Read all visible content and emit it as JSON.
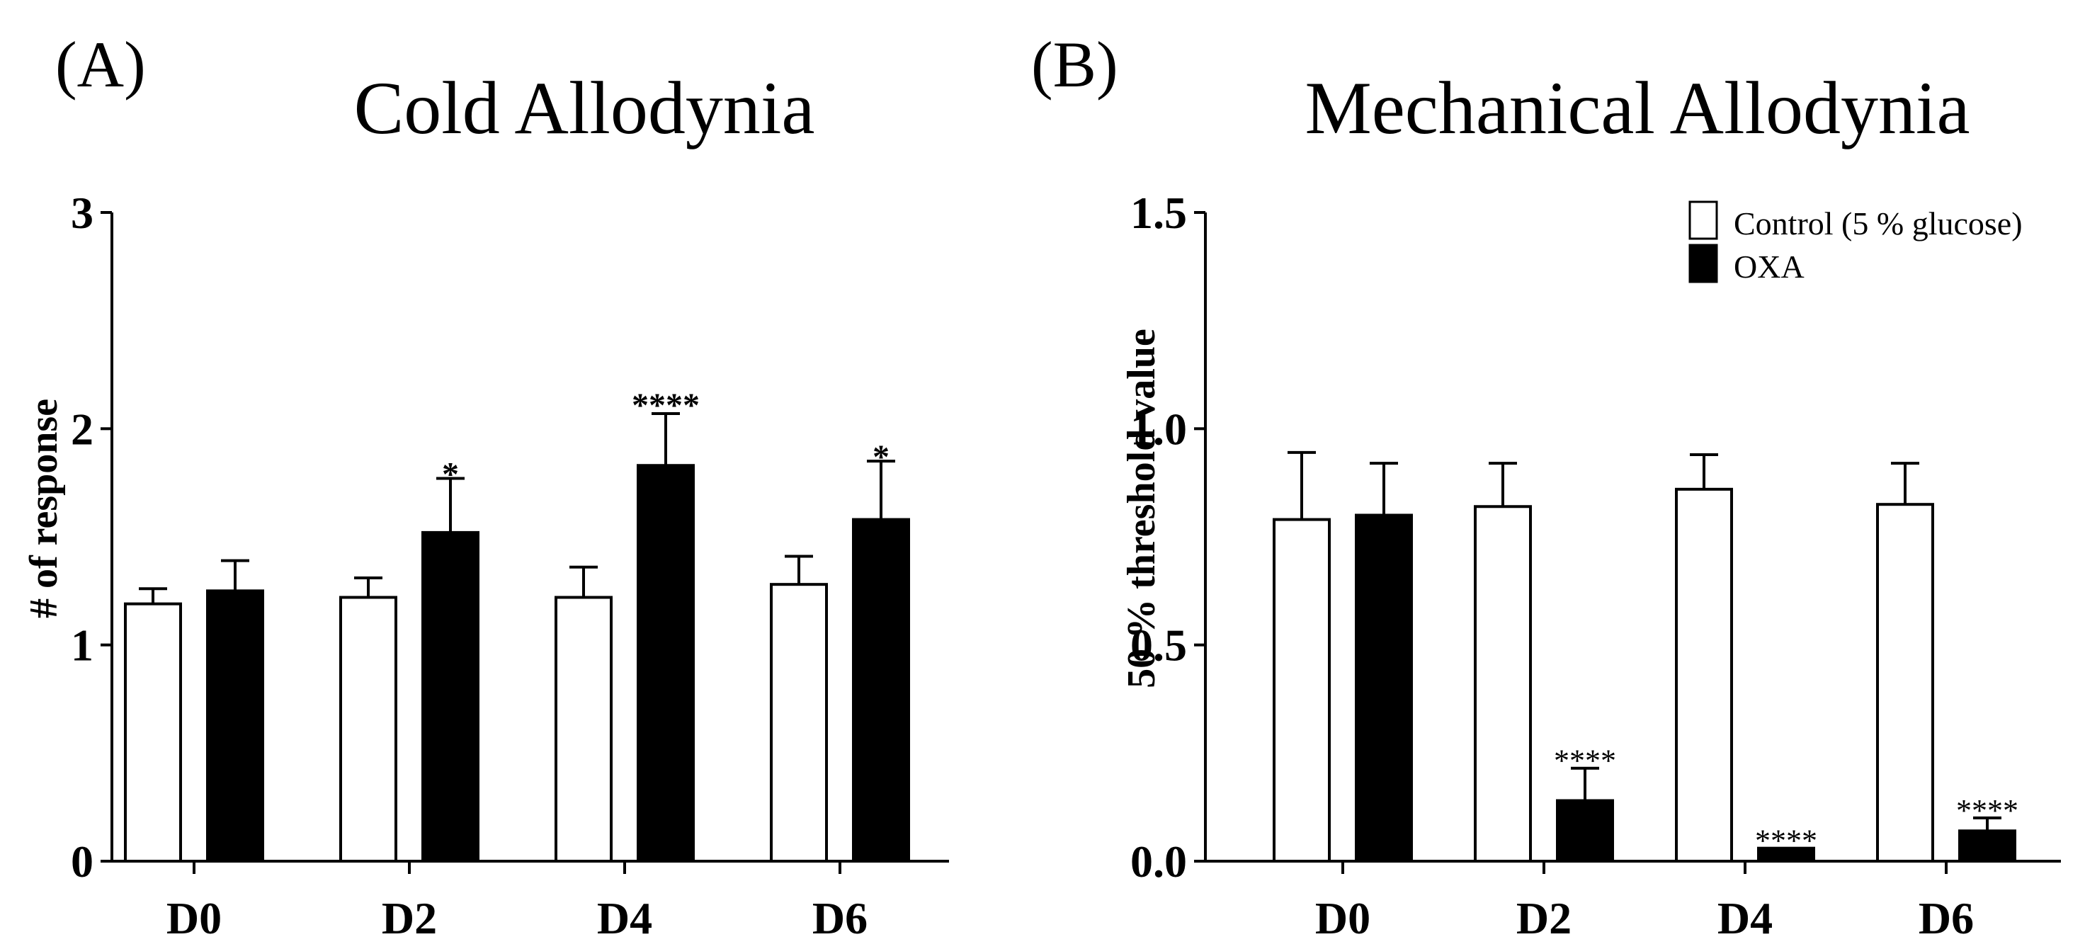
{
  "chart_data": [
    {
      "type": "bar",
      "panel_label": "(A)",
      "title": "Cold Allodynia",
      "xlabel": "",
      "ylabel": "# of response",
      "ylim": [
        0,
        3
      ],
      "yticks": [
        "0",
        "1",
        "2",
        "3"
      ],
      "categories": [
        "D0",
        "D2",
        "D4",
        "D6"
      ],
      "series": [
        {
          "name": "Control (5 % glucose)",
          "color": "#ffffff",
          "values": [
            1.19,
            1.22,
            1.22,
            1.28
          ],
          "errors": [
            0.07,
            0.09,
            0.14,
            0.13
          ]
        },
        {
          "name": "OXA",
          "color": "#000000",
          "values": [
            1.25,
            1.52,
            1.83,
            1.58
          ],
          "errors": [
            0.14,
            0.25,
            0.24,
            0.27
          ]
        }
      ],
      "annotations": [
        "",
        "*",
        "****",
        "*"
      ]
    },
    {
      "type": "bar",
      "panel_label": "(B)",
      "title": "Mechanical Allodynia",
      "xlabel": "",
      "ylabel": "50 % threshold value",
      "ylim": [
        0,
        1.5
      ],
      "yticks": [
        "0.0",
        "0.5",
        "1.0",
        "1.5"
      ],
      "categories": [
        "D0",
        "D2",
        "D4",
        "D6"
      ],
      "series": [
        {
          "name": "Control (5 % glucose)",
          "color": "#ffffff",
          "values": [
            0.79,
            0.82,
            0.86,
            0.825
          ],
          "errors": [
            0.155,
            0.1,
            0.08,
            0.095
          ]
        },
        {
          "name": "OXA",
          "color": "#000000",
          "values": [
            0.8,
            0.14,
            0.03,
            0.07
          ],
          "errors": [
            0.12,
            0.075,
            0.0,
            0.03
          ]
        }
      ],
      "annotations": [
        "",
        "****",
        "****",
        "****"
      ],
      "legend": [
        "Control (5 % glucose)",
        "OXA"
      ]
    }
  ]
}
